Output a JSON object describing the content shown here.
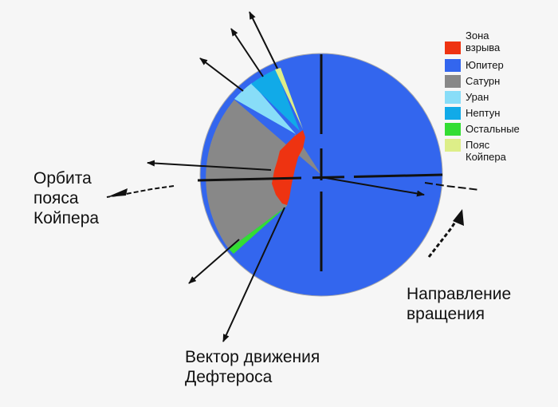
{
  "labels": {
    "kuiper_orbit": "Орбита\nпояса\nКойпера",
    "rotation_direction": "Направление\nвращения",
    "motion_vector": "Вектор движения\nДефтероса"
  },
  "legend": [
    {
      "label": "Зона\nвзрыва",
      "color": "#ee3311"
    },
    {
      "label": "Юпитер",
      "color": "#3366ee"
    },
    {
      "label": "Сатурн",
      "color": "#888888"
    },
    {
      "label": "Уран",
      "color": "#88ddf8"
    },
    {
      "label": "Нептун",
      "color": "#11aae8"
    },
    {
      "label": "Остальные",
      "color": "#33dd33"
    },
    {
      "label": "Пояс\nКойпера",
      "color": "#ddee88"
    }
  ],
  "colors": {
    "explosion": "#ee3311",
    "jupiter": "#3366ee",
    "saturn": "#888888",
    "uranus": "#88ddf8",
    "neptune": "#11aae8",
    "others": "#33dd33",
    "kuiper": "#ddee88",
    "lines": "#111111"
  }
}
